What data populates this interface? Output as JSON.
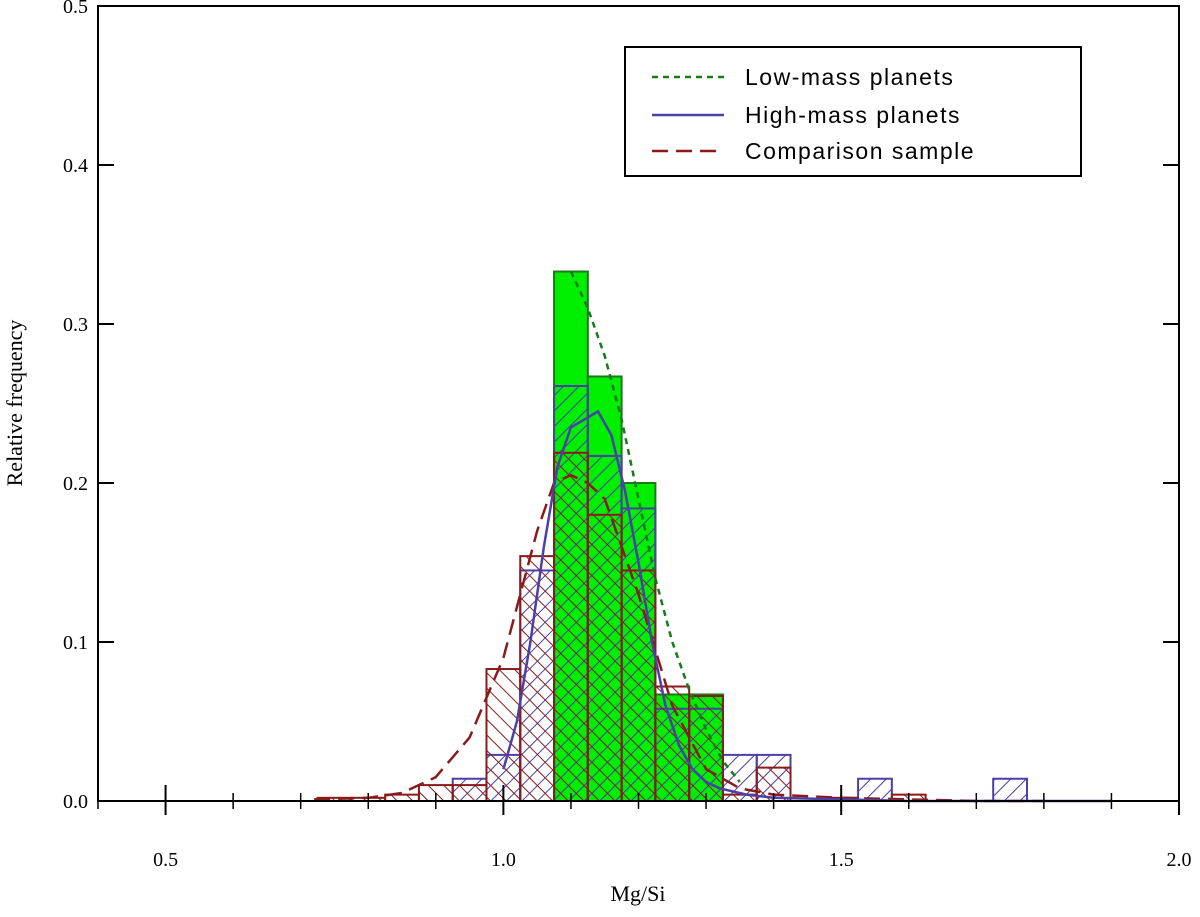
{
  "chart_data": {
    "type": "histogram",
    "xlabel": "Mg/Si",
    "ylabel": "Relative frequency",
    "xlim": [
      0.4,
      2.0
    ],
    "ylim": [
      0.0,
      0.5
    ],
    "xticks": [
      0.5,
      1.0,
      1.5,
      2.0
    ],
    "xtick_labels": [
      "0.5",
      "1.0",
      "1.5",
      "2.0"
    ],
    "yticks": [
      0.0,
      0.1,
      0.2,
      0.3,
      0.4,
      0.5
    ],
    "ytick_labels": [
      "0.0",
      "0.1",
      "0.2",
      "0.3",
      "0.4",
      "0.5"
    ],
    "bin_width": 0.05,
    "legend_position": "top-right",
    "series": [
      {
        "name": "Low-mass planets",
        "color": "#1a7a1a",
        "fill": "#00ee00",
        "line_style": "dotted",
        "bins": [
          {
            "x0": 1.075,
            "value": 0.333
          },
          {
            "x0": 1.125,
            "value": 0.267
          },
          {
            "x0": 1.175,
            "value": 0.2
          },
          {
            "x0": 1.225,
            "value": 0.067
          },
          {
            "x0": 1.275,
            "value": 0.067
          }
        ],
        "curve": {
          "x": [
            1.1,
            1.125,
            1.15,
            1.175,
            1.2,
            1.225,
            1.25,
            1.275,
            1.3,
            1.325,
            1.35
          ],
          "y": [
            0.333,
            0.31,
            0.28,
            0.24,
            0.19,
            0.14,
            0.1,
            0.07,
            0.045,
            0.025,
            0.012
          ]
        }
      },
      {
        "name": "High-mass planets",
        "color": "#4b3fa8",
        "fill": "none",
        "line_style": "solid",
        "bins": [
          {
            "x0": 0.925,
            "value": 0.014
          },
          {
            "x0": 0.975,
            "value": 0.029
          },
          {
            "x0": 1.025,
            "value": 0.145
          },
          {
            "x0": 1.075,
            "value": 0.261
          },
          {
            "x0": 1.125,
            "value": 0.217
          },
          {
            "x0": 1.175,
            "value": 0.184
          },
          {
            "x0": 1.225,
            "value": 0.058
          },
          {
            "x0": 1.275,
            "value": 0.058
          },
          {
            "x0": 1.325,
            "value": 0.029
          },
          {
            "x0": 1.375,
            "value": 0.029
          },
          {
            "x0": 1.525,
            "value": 0.014
          },
          {
            "x0": 1.725,
            "value": 0.014
          }
        ],
        "curve": {
          "x": [
            1.0,
            1.02,
            1.04,
            1.06,
            1.08,
            1.1,
            1.12,
            1.14,
            1.16,
            1.18,
            1.2,
            1.22,
            1.24,
            1.26,
            1.28,
            1.3,
            1.32,
            1.34,
            1.36,
            1.38,
            1.4,
            1.5,
            1.6,
            1.7,
            1.8,
            1.9
          ],
          "y": [
            0.02,
            0.05,
            0.1,
            0.16,
            0.21,
            0.235,
            0.24,
            0.245,
            0.23,
            0.195,
            0.15,
            0.1,
            0.06,
            0.035,
            0.02,
            0.012,
            0.008,
            0.006,
            0.004,
            0.003,
            0.002,
            0.001,
            0.0,
            0.0,
            0.0,
            0.0
          ]
        }
      },
      {
        "name": "Comparison sample",
        "color": "#8b1a1a",
        "fill": "none",
        "line_style": "dashed",
        "bins": [
          {
            "x0": 0.725,
            "value": 0.002
          },
          {
            "x0": 0.775,
            "value": 0.002
          },
          {
            "x0": 0.825,
            "value": 0.004
          },
          {
            "x0": 0.875,
            "value": 0.01
          },
          {
            "x0": 0.925,
            "value": 0.01
          },
          {
            "x0": 0.975,
            "value": 0.083
          },
          {
            "x0": 1.025,
            "value": 0.154
          },
          {
            "x0": 1.075,
            "value": 0.219
          },
          {
            "x0": 1.125,
            "value": 0.18
          },
          {
            "x0": 1.175,
            "value": 0.145
          },
          {
            "x0": 1.225,
            "value": 0.072
          },
          {
            "x0": 1.275,
            "value": 0.066
          },
          {
            "x0": 1.325,
            "value": 0.004
          },
          {
            "x0": 1.375,
            "value": 0.021
          },
          {
            "x0": 1.475,
            "value": 0.002
          },
          {
            "x0": 1.575,
            "value": 0.004
          }
        ],
        "curve": {
          "x": [
            0.72,
            0.8,
            0.85,
            0.9,
            0.95,
            1.0,
            1.05,
            1.075,
            1.1,
            1.125,
            1.15,
            1.2,
            1.25,
            1.3,
            1.35,
            1.4,
            1.5,
            1.6,
            1.7,
            1.8
          ],
          "y": [
            0.001,
            0.002,
            0.005,
            0.015,
            0.04,
            0.09,
            0.17,
            0.2,
            0.205,
            0.2,
            0.19,
            0.13,
            0.06,
            0.02,
            0.008,
            0.004,
            0.002,
            0.001,
            0.0,
            0.0
          ]
        }
      }
    ]
  }
}
